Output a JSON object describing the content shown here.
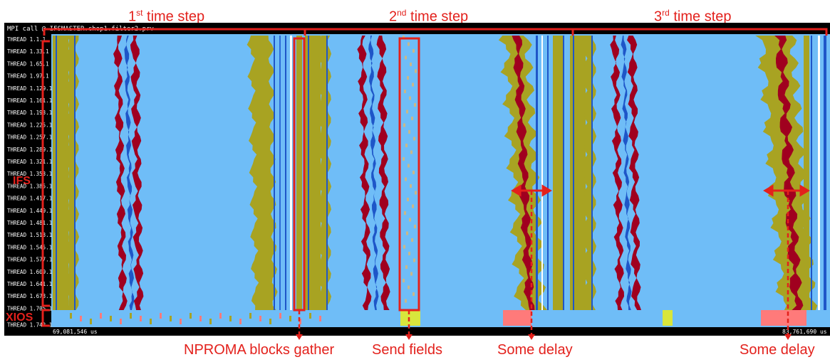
{
  "header": {
    "title": "MPI call @ IFSMASTER.chop1.filter2.prv"
  },
  "time_steps": [
    {
      "ordinal": "1",
      "suffix": "st",
      "rest": " time step"
    },
    {
      "ordinal": "2",
      "suffix": "nd",
      "rest": " time step"
    },
    {
      "ordinal": "3",
      "suffix": "rd",
      "rest": " time step"
    }
  ],
  "threads": [
    "THREAD 1.1.1",
    "THREAD 1.33.1",
    "THREAD 1.65.1",
    "THREAD 1.97.1",
    "THREAD 1.129.1",
    "THREAD 1.161.1",
    "THREAD 1.193.1",
    "THREAD 1.225.1",
    "THREAD 1.257.1",
    "THREAD 1.289.1",
    "THREAD 1.321.1",
    "THREAD 1.353.1",
    "THREAD 1.385.1",
    "THREAD 1.417.1",
    "THREAD 1.449.1",
    "THREAD 1.481.1",
    "THREAD 1.513.1",
    "THREAD 1.545.1",
    "THREAD 1.577.1",
    "THREAD 1.609.1",
    "THREAD 1.641.1",
    "THREAD 1.673.1",
    "THREAD 1.705.1",
    "THREAD 1.742.1"
  ],
  "groups": {
    "ifs": "IFS",
    "xios": "XIOS"
  },
  "time_axis": {
    "start": "69,081,546 us",
    "end": "83,761,690 us"
  },
  "annotations": {
    "nproma": "NPROMA blocks gather",
    "send_fields": "Send fields",
    "delay_1": "Some delay",
    "delay_2": "Some delay"
  },
  "colors": {
    "background": "#6fbdf7",
    "computation": "#a8a322",
    "mpi_wait": "#a0001f",
    "mpi_send": "#1e56c8",
    "annotation": "#e3211c",
    "xios_activity": "#ff7a7a",
    "highlight": "#d8e63c"
  }
}
